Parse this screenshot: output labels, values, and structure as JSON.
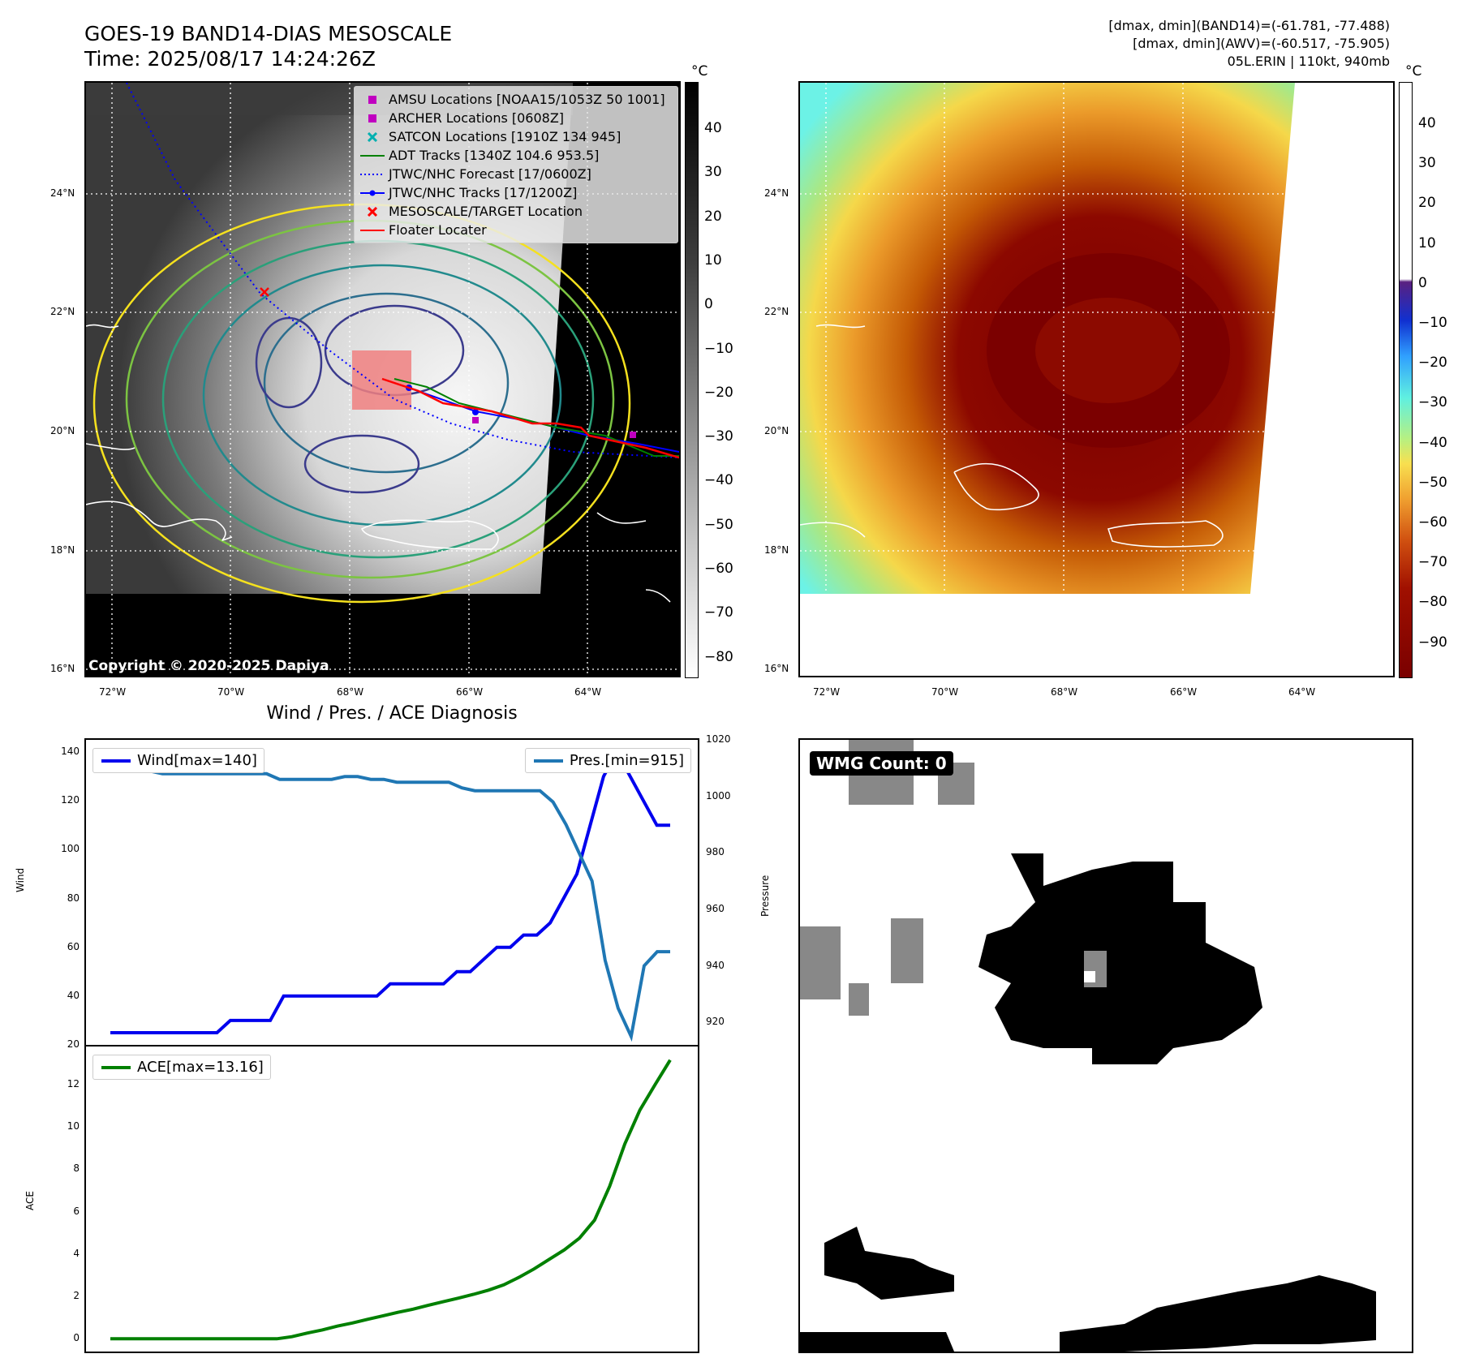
{
  "header": {
    "title_line1": "GOES-19 BAND14-DIAS MESOSCALE",
    "title_line2": "Time: 2025/08/17 14:24:26Z",
    "stats_line1": "[dmax, dmin](BAND14)=(-61.781, -77.488)",
    "stats_line2": "[dmax, dmin](AWV)=(-60.517, -75.905)",
    "stats_line3": "05L.ERIN | 110kt, 940mb"
  },
  "map": {
    "lat_labels": [
      "24°N",
      "22°N",
      "20°N",
      "18°N",
      "16°N"
    ],
    "lon_labels": [
      "72°W",
      "70°W",
      "68°W",
      "66°W",
      "64°W"
    ],
    "copyright": "Copyright © 2020-2025 Dapiya",
    "colorbar_unit": "°C",
    "left_colorbar_ticks": [
      "40",
      "30",
      "20",
      "10",
      "0",
      "−10",
      "−20",
      "−30",
      "−40",
      "−50",
      "−60",
      "−70",
      "−80"
    ],
    "right_colorbar_ticks": [
      "40",
      "30",
      "20",
      "10",
      "0",
      "−10",
      "−20",
      "−30",
      "−40",
      "−50",
      "−60",
      "−70",
      "−80",
      "−90"
    ],
    "legend": [
      {
        "label": "AMSU Locations [NOAA15/1053Z 50 1001]",
        "symbol": "square",
        "color": "#c000c0"
      },
      {
        "label": "ARCHER Locations [0608Z]",
        "symbol": "square",
        "color": "#c000c0"
      },
      {
        "label": "SATCON Locations [1910Z 134 945]",
        "symbol": "x",
        "color": "#00b0b0"
      },
      {
        "label": "ADT Tracks [1340Z 104.6 953.5]",
        "symbol": "line",
        "color": "#008000"
      },
      {
        "label": "JTWC/NHC Forecast [17/0600Z]",
        "symbol": "dotted",
        "color": "#0000ff"
      },
      {
        "label": "JTWC/NHC Tracks [17/1200Z]",
        "symbol": "line-dot",
        "color": "#0000ff"
      },
      {
        "label": "MESOSCALE/TARGET Location",
        "symbol": "x",
        "color": "#ff0000"
      },
      {
        "label": "Floater Locater",
        "symbol": "line",
        "color": "#ff0000"
      }
    ]
  },
  "diagnosis": {
    "title": "Wind / Pres. / ACE Diagnosis",
    "wind_ylabel": "Wind",
    "pres_ylabel": "Pressure",
    "ace_ylabel": "ACE",
    "wind_legend": "Wind[max=140]",
    "pres_legend": "Pres.[min=915]",
    "ace_legend": "ACE[max=13.16]",
    "wind_ticks": [
      "140",
      "120",
      "100",
      "80",
      "60",
      "40",
      "20"
    ],
    "pres_ticks": [
      "1020",
      "1000",
      "980",
      "960",
      "940",
      "920"
    ],
    "ace_ticks": [
      "12",
      "10",
      "8",
      "6",
      "4",
      "2",
      "0"
    ]
  },
  "wmg": {
    "label": "WMG Count: 0"
  },
  "chart_data": [
    {
      "type": "line",
      "title": "Wind / Pres. / ACE Diagnosis",
      "ylabel": "Wind",
      "ylim": [
        20,
        145
      ],
      "series": [
        {
          "name": "Wind[max=140]",
          "color": "#0000ee",
          "values": [
            25,
            25,
            25,
            25,
            25,
            25,
            25,
            25,
            25,
            30,
            30,
            30,
            30,
            40,
            40,
            40,
            40,
            40,
            40,
            40,
            40,
            45,
            45,
            45,
            45,
            45,
            50,
            50,
            55,
            60,
            60,
            65,
            65,
            70,
            80,
            90,
            110,
            130,
            140,
            130,
            120,
            110,
            110
          ]
        }
      ]
    },
    {
      "type": "line",
      "ylabel": "Pressure",
      "ylim": [
        912,
        1020
      ],
      "series": [
        {
          "name": "Pres.[min=915]",
          "color": "#1f77b4",
          "values": [
            1015,
            1015,
            1010,
            1009,
            1008,
            1008,
            1008,
            1008,
            1008,
            1008,
            1008,
            1008,
            1008,
            1006,
            1006,
            1006,
            1006,
            1006,
            1007,
            1007,
            1006,
            1006,
            1005,
            1005,
            1005,
            1005,
            1005,
            1003,
            1002,
            1002,
            1002,
            1002,
            1002,
            1002,
            998,
            990,
            980,
            970,
            942,
            925,
            915,
            940,
            945,
            945
          ]
        }
      ]
    },
    {
      "type": "line",
      "ylabel": "ACE",
      "ylim": [
        -0.6,
        13.8
      ],
      "series": [
        {
          "name": "ACE[max=13.16]",
          "color": "#008000",
          "values": [
            0,
            0,
            0,
            0,
            0,
            0,
            0,
            0,
            0,
            0,
            0,
            0,
            0.1,
            0.27,
            0.42,
            0.6,
            0.75,
            0.92,
            1.08,
            1.25,
            1.4,
            1.58,
            1.75,
            1.92,
            2.1,
            2.3,
            2.55,
            2.9,
            3.3,
            3.75,
            4.2,
            4.75,
            5.6,
            7.2,
            9.2,
            10.8,
            12.0,
            13.16
          ]
        }
      ]
    }
  ]
}
